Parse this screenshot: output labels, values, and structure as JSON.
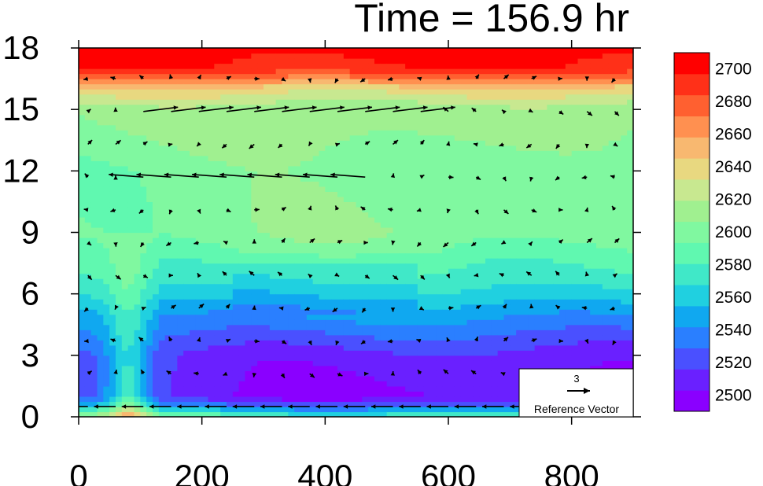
{
  "chart_data": {
    "type": "heatmap",
    "title": "Time = 156.9 hr",
    "x_ticks": [
      0,
      200,
      400,
      600,
      800
    ],
    "y_ticks": [
      0,
      3,
      6,
      9,
      12,
      15,
      18
    ],
    "xlim": [
      0,
      900
    ],
    "ylim": [
      0,
      18
    ],
    "colorbar": {
      "ticks": [
        2500,
        2520,
        2540,
        2560,
        2580,
        2600,
        2620,
        2640,
        2660,
        2680,
        2700
      ],
      "range": [
        2490,
        2710
      ],
      "colors": [
        "#8a00ff",
        "#6a20ff",
        "#4a50ff",
        "#2a7fff",
        "#10a8f0",
        "#20d0e0",
        "#40e8c8",
        "#60f8b0",
        "#80f8a0",
        "#a0f090",
        "#c8e890",
        "#e8d880",
        "#f8b870",
        "#ff9050",
        "#ff6030",
        "#ff3018",
        "#ff0000"
      ]
    },
    "field_profile": [
      {
        "z": 0.0,
        "value": 2560
      },
      {
        "z": 1.0,
        "value": 2500
      },
      {
        "z": 3.0,
        "value": 2510
      },
      {
        "z": 5.0,
        "value": 2545
      },
      {
        "z": 6.0,
        "value": 2565
      },
      {
        "z": 7.0,
        "value": 2580
      },
      {
        "z": 9.0,
        "value": 2598
      },
      {
        "z": 12.0,
        "value": 2595
      },
      {
        "z": 15.0,
        "value": 2610
      },
      {
        "z": 16.0,
        "value": 2640
      },
      {
        "z": 16.5,
        "value": 2670
      },
      {
        "z": 17.0,
        "value": 2695
      },
      {
        "z": 18.0,
        "value": 2705
      }
    ],
    "reference_vector": {
      "magnitude": "3",
      "label": "Reference Vector"
    }
  }
}
